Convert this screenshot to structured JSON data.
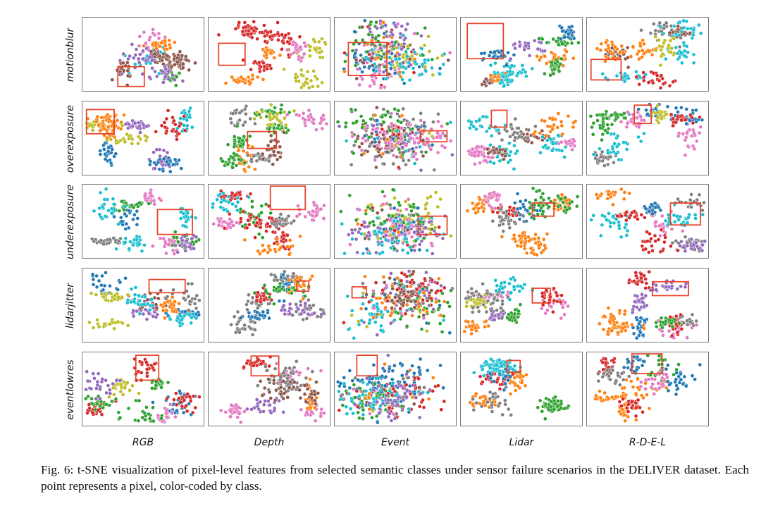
{
  "figure": {
    "rows": [
      "motionblur",
      "overexposure",
      "underexposure",
      "lidarjitter",
      "eventlowres"
    ],
    "columns": [
      "RGB",
      "Depth",
      "Event",
      "Lidar",
      "R-D-E-L"
    ],
    "class_colors": [
      "#d62728",
      "#2ca02c",
      "#1f77b4",
      "#7f7f7f",
      "#ff7f0e",
      "#9467bd",
      "#e377c2",
      "#8c564b",
      "#bcbd22",
      "#17becf"
    ],
    "highlight_color": "#e8432a"
  },
  "caption": {
    "text": "Fig. 6: t-SNE visualization of pixel-level features from selected semantic classes under sensor failure scenarios in the DELIVER dataset. Each point represents a pixel, color-coded by class."
  }
}
